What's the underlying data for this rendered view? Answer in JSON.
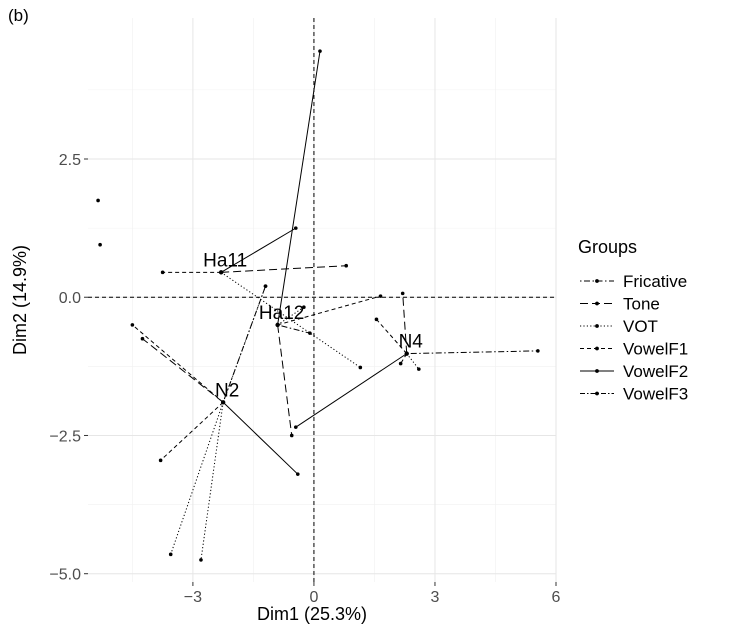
{
  "panel_label": "(b)",
  "chart_data": {
    "type": "scatter",
    "title": "",
    "xlabel": "Dim1 (25.3%)",
    "ylabel": "Dim2 (14.9%)",
    "xlim": [
      -5.6,
      6.0
    ],
    "ylim": [
      -5.15,
      5.05
    ],
    "x_ticks": [
      -3,
      0,
      3,
      6
    ],
    "x_tick_labels": [
      "−3",
      "0",
      "3",
      "6"
    ],
    "y_ticks": [
      -5.0,
      -2.5,
      0.0,
      2.5
    ],
    "y_tick_labels": [
      "−5.0",
      "−2.5",
      "0.0",
      "2.5"
    ],
    "grid": true,
    "reference_lines": {
      "x": 0,
      "y": 0
    },
    "legend": {
      "title": "Groups",
      "position": "right"
    },
    "centers": [
      {
        "label": "Ha11",
        "x": -2.3,
        "y": 0.45
      },
      {
        "label": "Ha12",
        "x": -0.9,
        "y": -0.5
      },
      {
        "label": "N2",
        "x": -2.25,
        "y": -1.9
      },
      {
        "label": "N4",
        "x": 2.3,
        "y": -1.02
      }
    ],
    "series": [
      {
        "name": "Fricative",
        "dash": "dotdash",
        "points": [
          [
            -5.35,
            1.75
          ],
          [
            -2.3,
            0.45
          ],
          [
            -0.9,
            -0.5
          ],
          [
            -0.1,
            -0.65
          ],
          [
            -2.25,
            -1.9
          ],
          [
            -1.2,
            0.2
          ],
          [
            2.3,
            -1.02
          ],
          [
            5.55,
            -0.97
          ]
        ]
      },
      {
        "name": "Tone",
        "dash": "longdash",
        "points": [
          [
            -5.3,
            0.95
          ],
          [
            -2.3,
            0.45
          ],
          [
            0.8,
            0.57
          ],
          [
            -0.9,
            -0.5
          ],
          [
            -0.55,
            -2.5
          ],
          [
            -2.25,
            -1.9
          ],
          [
            -4.25,
            -0.75
          ],
          [
            2.3,
            -1.02
          ],
          [
            2.2,
            0.07
          ]
        ]
      },
      {
        "name": "VOT",
        "dash": "dotted",
        "points": [
          [
            -2.3,
            0.45
          ],
          [
            1.15,
            -1.27
          ],
          [
            -0.9,
            -0.5
          ],
          [
            -0.25,
            -0.18
          ],
          [
            -2.25,
            -1.9
          ],
          [
            -3.55,
            -4.65
          ],
          [
            -2.8,
            -4.75
          ],
          [
            -1.2,
            0.2
          ],
          [
            2.3,
            -1.02
          ],
          [
            2.6,
            -1.3
          ]
        ]
      },
      {
        "name": "VowelF1",
        "dash": "dashed",
        "points": [
          [
            -2.3,
            0.45
          ],
          [
            -3.75,
            0.45
          ],
          [
            -0.9,
            -0.5
          ],
          [
            1.65,
            0.02
          ],
          [
            -2.25,
            -1.9
          ],
          [
            -3.8,
            -2.95
          ],
          [
            -4.5,
            -0.5
          ],
          [
            2.3,
            -1.02
          ],
          [
            1.55,
            -0.4
          ],
          [
            2.15,
            -1.2
          ]
        ]
      },
      {
        "name": "VowelF2",
        "dash": "solid",
        "points": [
          [
            -2.3,
            0.45
          ],
          [
            -0.45,
            1.25
          ],
          [
            -0.9,
            -0.5
          ],
          [
            0.15,
            4.45
          ],
          [
            -2.25,
            -1.9
          ],
          [
            -0.4,
            -3.2
          ],
          [
            2.3,
            -1.02
          ],
          [
            -0.45,
            -2.35
          ]
        ]
      },
      {
        "name": "VowelF3",
        "dash": "twodash",
        "points": []
      }
    ]
  }
}
